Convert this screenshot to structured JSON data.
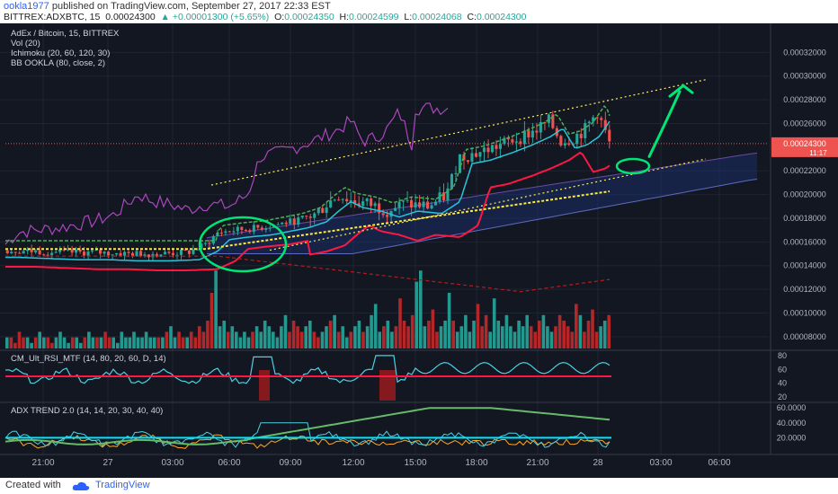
{
  "header": {
    "user": "ookla1977",
    "published": "published on TradingView.com, September 27, 2017 22:33 EST",
    "symbol": "BITTREX:ADXBTC, 15",
    "last": "0.00024300",
    "change": "▲ +0.00001300 (+5.65%)",
    "o_label": "O:",
    "o": "0.00024350",
    "h_label": "H:",
    "h": "0.00024599",
    "l_label": "L:",
    "l": "0.00024068",
    "c_label": "C:",
    "c": "0.00024300"
  },
  "legend": [
    "AdEx / Bitcoin, 15, BITTREX",
    "Vol (20)",
    "Ichimoku (20, 60, 120, 30)",
    "BB OOKLA (80, close, 2)"
  ],
  "price_tag": {
    "value": "0.00024300",
    "countdown": "11:17"
  },
  "footer": {
    "created": "Created with",
    "brand": "TradingView"
  },
  "colors": {
    "bg": "#131722",
    "up": "#26a69a",
    "down": "#ef5350",
    "bb_upper": "#4caf50",
    "bb_lower": "#ffeb3b",
    "ichimoku": "#7e57c2",
    "annotation": "#00e676"
  },
  "chart_data": [
    {
      "type": "candlestick",
      "title": "AdEx / Bitcoin, 15, BITTREX",
      "x_ticks": [
        "21:00",
        "27",
        "03:00",
        "06:00",
        "09:00",
        "12:00",
        "15:00",
        "18:00",
        "21:00",
        "28",
        "03:00",
        "06:00"
      ],
      "y_ticks": [
        "0.00032000",
        "0.00030000",
        "0.00028000",
        "0.00026000",
        "0.00022000",
        "0.00020000",
        "0.00018000",
        "0.00016000",
        "0.00014000",
        "0.00012000",
        "0.00010000",
        "0.00008000"
      ],
      "ylim": [
        7e-05,
        0.00034
      ],
      "close_path": [
        [
          0,
          0.000153
        ],
        [
          0.05,
          0.000152
        ],
        [
          0.1,
          0.000151
        ],
        [
          0.15,
          0.000151
        ],
        [
          0.2,
          0.00015
        ],
        [
          0.25,
          0.00015
        ],
        [
          0.3,
          0.000151
        ],
        [
          0.33,
          0.000158
        ],
        [
          0.35,
          0.000168
        ],
        [
          0.38,
          0.00017
        ],
        [
          0.42,
          0.000172
        ],
        [
          0.45,
          0.000175
        ],
        [
          0.48,
          0.000178
        ],
        [
          0.51,
          0.000183
        ],
        [
          0.53,
          0.000192
        ],
        [
          0.55,
          0.0002
        ],
        [
          0.57,
          0.000195
        ],
        [
          0.6,
          0.000192
        ],
        [
          0.63,
          0.000187
        ],
        [
          0.66,
          0.000192
        ],
        [
          0.7,
          0.00019
        ],
        [
          0.73,
          0.0002
        ],
        [
          0.75,
          0.000232
        ],
        [
          0.78,
          0.000235
        ],
        [
          0.82,
          0.000242
        ],
        [
          0.85,
          0.000248
        ],
        [
          0.88,
          0.000255
        ],
        [
          0.9,
          0.000262
        ],
        [
          0.92,
          0.000245
        ],
        [
          0.94,
          0.000248
        ],
        [
          0.96,
          0.000255
        ],
        [
          0.98,
          0.00027
        ],
        [
          1.0,
          0.000243
        ]
      ],
      "volume": [
        2,
        2,
        1,
        3,
        2,
        2,
        1,
        2,
        3,
        2,
        2,
        1,
        2,
        3,
        2,
        1,
        2,
        2,
        1,
        2,
        3,
        2,
        2,
        2,
        3,
        2,
        2,
        1,
        3,
        2,
        2,
        3,
        2,
        2,
        3,
        2,
        2,
        2,
        2,
        3,
        4,
        2,
        3,
        2,
        2,
        3,
        2,
        4,
        3,
        5,
        10,
        14,
        4,
        5,
        3,
        4,
        3,
        2,
        3,
        2,
        3,
        4,
        3,
        5,
        4,
        3,
        2,
        4,
        6,
        3,
        5,
        4,
        3,
        4,
        5,
        3,
        2,
        3,
        4,
        5,
        6,
        3,
        4,
        2,
        3,
        4,
        5,
        3,
        4,
        6,
        8,
        3,
        4,
        5,
        3,
        4,
        9,
        5,
        4,
        6,
        12,
        14,
        4,
        5,
        7,
        3,
        4,
        5,
        10,
        5,
        3,
        4,
        6,
        3,
        5,
        8,
        4,
        6,
        3,
        9,
        5,
        4,
        6,
        4,
        3,
        5,
        4,
        6,
        4,
        3,
        5,
        6,
        4,
        3,
        4,
        6,
        5,
        4,
        3,
        8,
        6,
        3,
        5,
        7,
        3,
        4,
        5,
        6
      ],
      "annotations": [
        "ascending channel",
        "breakout circle",
        "target arrow"
      ]
    },
    {
      "type": "line",
      "title": "CM_Ult_RSI_MTF (14, 80, 20, 60, D, 14)",
      "y_ticks": [
        "80",
        "60",
        "40",
        "20"
      ],
      "ylim": [
        15,
        85
      ],
      "level": 50
    },
    {
      "type": "line",
      "title": "ADX TREND 2.0 (14, 14, 20, 30, 40, 40)",
      "y_ticks": [
        "60.0000",
        "40.0000",
        "20.0000"
      ],
      "ylim": [
        0,
        65
      ],
      "level": 20
    }
  ]
}
